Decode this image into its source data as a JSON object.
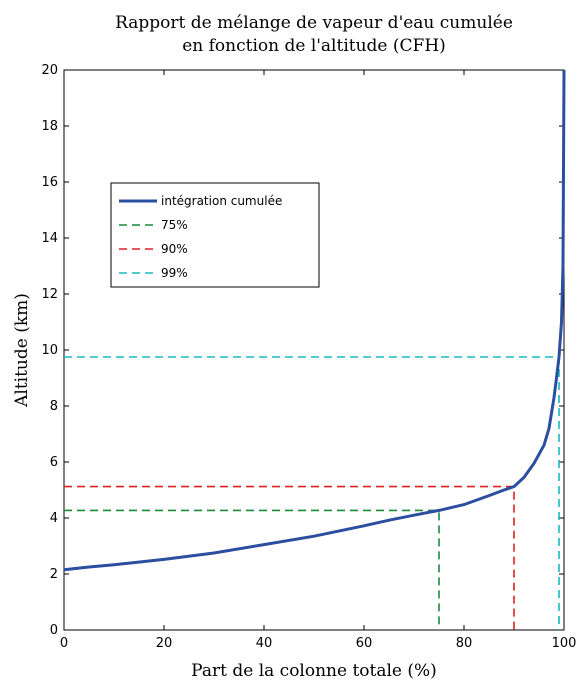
{
  "chart_data": {
    "type": "line",
    "title_lines": [
      "Rapport de mélange de vapeur d'eau cumulée",
      "en fonction de l'altitude (CFH)"
    ],
    "xlabel": "Part de la colonne totale (%)",
    "ylabel": "Altitude (km)",
    "xlim": [
      0,
      100
    ],
    "ylim": [
      0,
      20
    ],
    "xticks": [
      0,
      20,
      40,
      60,
      80,
      100
    ],
    "yticks": [
      0,
      2,
      4,
      6,
      8,
      10,
      12,
      14,
      16,
      18,
      20
    ],
    "grid": false,
    "legend_position": "upper-left",
    "series": [
      {
        "name": "intégration cumulée",
        "color": "#2b4ea0",
        "style": "solid",
        "x": [
          0,
          5,
          10,
          20,
          30,
          40,
          50,
          60,
          65,
          70,
          75,
          80,
          85,
          88,
          90,
          92,
          94,
          96,
          97,
          98,
          98.5,
          99,
          99.5,
          99.8,
          100
        ],
        "y": [
          2.15,
          2.25,
          2.33,
          2.52,
          2.75,
          3.05,
          3.35,
          3.72,
          3.92,
          4.1,
          4.27,
          4.48,
          4.8,
          5.0,
          5.12,
          5.45,
          5.95,
          6.6,
          7.2,
          8.3,
          9.0,
          9.75,
          11.0,
          13.0,
          20.0
        ]
      },
      {
        "name": "75%",
        "color": "#1a8a3a",
        "style": "dashed",
        "x": [
          0,
          75,
          75
        ],
        "y": [
          4.27,
          4.27,
          0
        ]
      },
      {
        "name": "90%",
        "color": "#e02020",
        "style": "dashed",
        "x": [
          0,
          90,
          90
        ],
        "y": [
          5.12,
          5.12,
          0
        ]
      },
      {
        "name": "99%",
        "color": "#18b8c0",
        "style": "dashed",
        "x": [
          0,
          99,
          99
        ],
        "y": [
          9.75,
          9.75,
          0
        ]
      }
    ]
  }
}
